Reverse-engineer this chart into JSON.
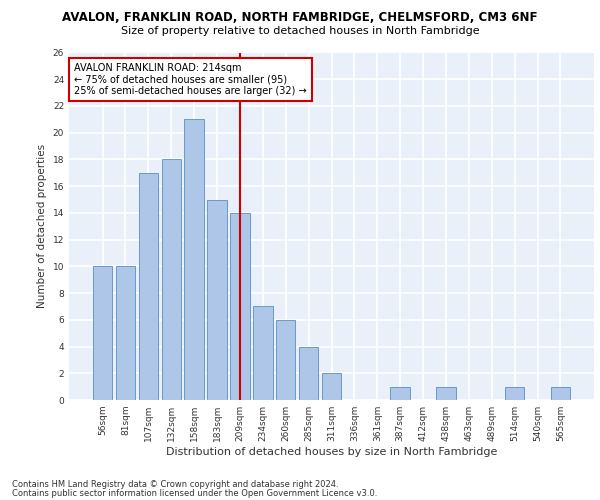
{
  "title1": "AVALON, FRANKLIN ROAD, NORTH FAMBRIDGE, CHELMSFORD, CM3 6NF",
  "title2": "Size of property relative to detached houses in North Fambridge",
  "xlabel": "Distribution of detached houses by size in North Fambridge",
  "ylabel": "Number of detached properties",
  "categories": [
    "56sqm",
    "81sqm",
    "107sqm",
    "132sqm",
    "158sqm",
    "183sqm",
    "209sqm",
    "234sqm",
    "260sqm",
    "285sqm",
    "311sqm",
    "336sqm",
    "361sqm",
    "387sqm",
    "412sqm",
    "438sqm",
    "463sqm",
    "489sqm",
    "514sqm",
    "540sqm",
    "565sqm"
  ],
  "values": [
    10,
    10,
    17,
    18,
    21,
    15,
    14,
    7,
    6,
    4,
    2,
    0,
    0,
    1,
    0,
    1,
    0,
    0,
    1,
    0,
    1
  ],
  "bar_color": "#aec6e8",
  "bar_edge_color": "#5a8fc2",
  "vline_x_index": 6,
  "vline_color": "#cc0000",
  "annotation_line1": "AVALON FRANKLIN ROAD: 214sqm",
  "annotation_line2": "← 75% of detached houses are smaller (95)",
  "annotation_line3": "25% of semi-detached houses are larger (32) →",
  "annotation_box_color": "#ffffff",
  "annotation_box_edge": "#cc0000",
  "ylim": [
    0,
    26
  ],
  "yticks": [
    0,
    2,
    4,
    6,
    8,
    10,
    12,
    14,
    16,
    18,
    20,
    22,
    24,
    26
  ],
  "bg_color": "#eaf0f9",
  "grid_color": "#ffffff",
  "footer1": "Contains HM Land Registry data © Crown copyright and database right 2024.",
  "footer2": "Contains public sector information licensed under the Open Government Licence v3.0.",
  "title1_fontsize": 8.5,
  "title2_fontsize": 8,
  "tick_fontsize": 6.5,
  "ylabel_fontsize": 7.5,
  "xlabel_fontsize": 8,
  "footer_fontsize": 6,
  "ann_fontsize": 7
}
